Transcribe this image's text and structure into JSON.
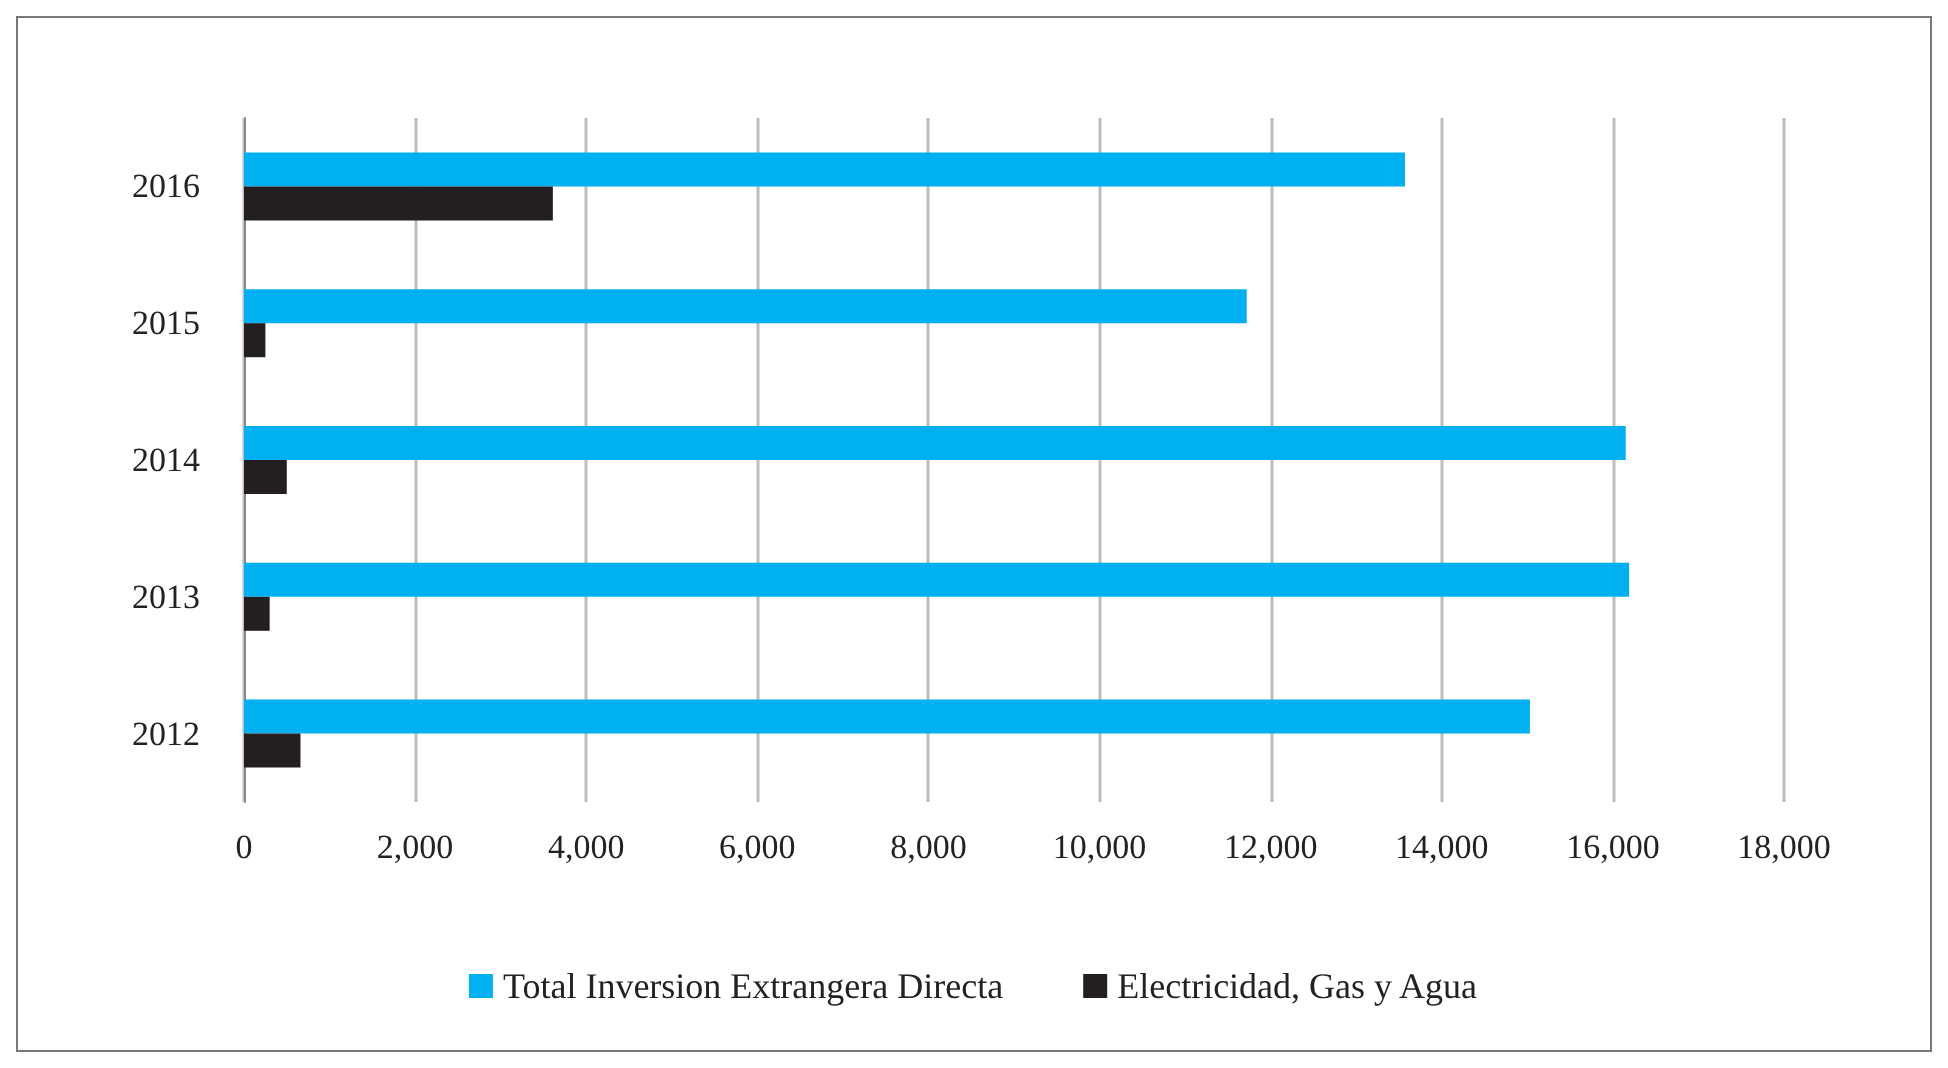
{
  "chart_data": {
    "type": "bar",
    "orientation": "horizontal",
    "categories": [
      "2016",
      "2015",
      "2014",
      "2013",
      "2012"
    ],
    "series": [
      {
        "name": "Total Inversion Extrangera Directa",
        "color": "#00b0f0",
        "values": [
          13570,
          11720,
          16150,
          16190,
          15030
        ]
      },
      {
        "name": "Electricidad, Gas y Agua",
        "color": "#231f20",
        "values": [
          3610,
          250,
          500,
          300,
          660
        ]
      }
    ],
    "xlim": [
      0,
      18000
    ],
    "xticks": [
      {
        "value": 0,
        "label": "0"
      },
      {
        "value": 2000,
        "label": "2,000"
      },
      {
        "value": 4000,
        "label": "4,000"
      },
      {
        "value": 6000,
        "label": "6,000"
      },
      {
        "value": 8000,
        "label": "8,000"
      },
      {
        "value": 10000,
        "label": "10,000"
      },
      {
        "value": 12000,
        "label": "12,000"
      },
      {
        "value": 14000,
        "label": "14,000"
      },
      {
        "value": 16000,
        "label": "16,000"
      },
      {
        "value": 18000,
        "label": "18,000"
      }
    ],
    "grid": "x",
    "legend": "bottom"
  }
}
